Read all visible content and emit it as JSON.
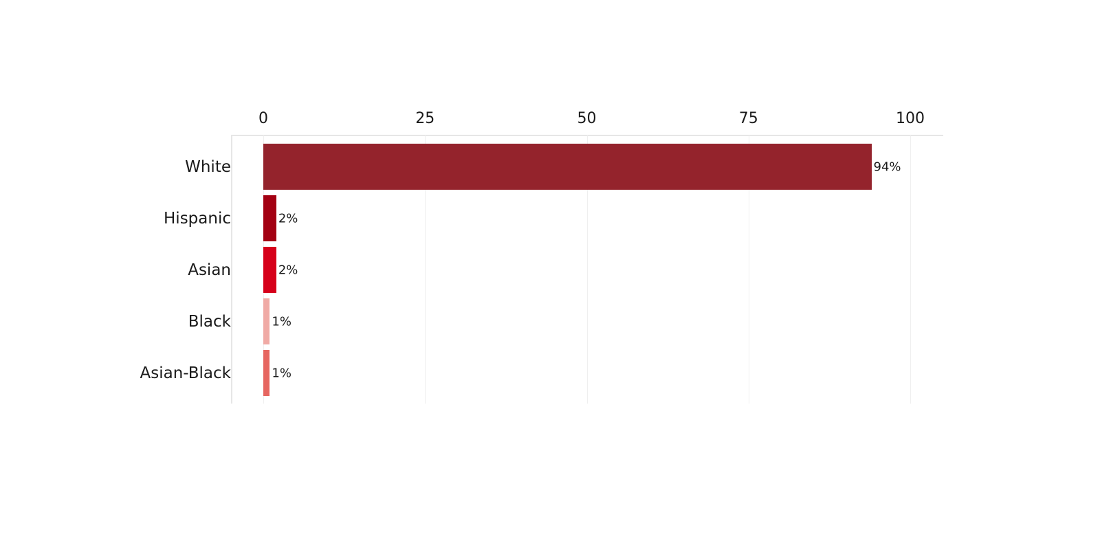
{
  "chart_data": {
    "type": "bar",
    "orientation": "horizontal",
    "title": "",
    "xlabel": "",
    "ylabel": "",
    "xlim": [
      0,
      100
    ],
    "x_ticks": [
      0,
      25,
      50,
      75,
      100
    ],
    "x_axis_position": "top",
    "grid": true,
    "legend": null,
    "categories": [
      "White",
      "Hispanic",
      "Asian",
      "Black",
      "Asian-Black"
    ],
    "values": [
      94,
      2,
      2,
      1,
      1
    ],
    "value_labels": [
      "94%",
      "2%",
      "2%",
      "1%",
      "1%"
    ],
    "colors": [
      "#94232c",
      "#a30012",
      "#d6001a",
      "#f0aaa5",
      "#e66660"
    ]
  }
}
